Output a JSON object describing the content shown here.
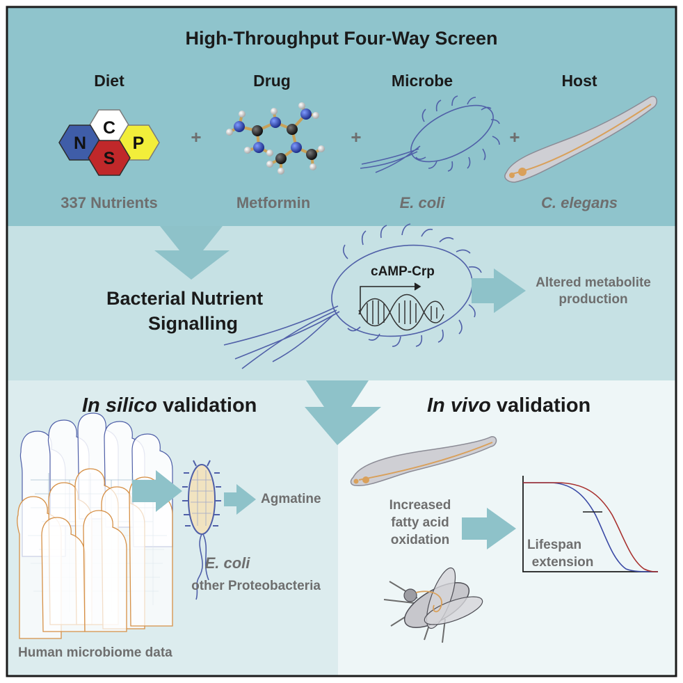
{
  "top_panel": {
    "title": "High-Throughput Four-Way Screen",
    "columns": [
      {
        "header": "Diet",
        "caption": "337 Nutrients"
      },
      {
        "header": "Drug",
        "caption": "Metformin"
      },
      {
        "header": "Microbe",
        "caption": "E. coli"
      },
      {
        "header": "Host",
        "caption": "C. elegans"
      }
    ],
    "plus_sign": "+",
    "hexagon_letters": [
      "N",
      "C",
      "S",
      "P"
    ],
    "hexagon_colors": {
      "N": "#3f5da8",
      "C": "#ffffff",
      "S": "#c0282a",
      "P": "#f2ee3a"
    }
  },
  "middle_panel": {
    "title_line1": "Bacterial Nutrient",
    "title_line2": "Signalling",
    "gene_label": "cAMP-Crp",
    "output_line1": "Altered metabolite",
    "output_line2": "production"
  },
  "bottom_left": {
    "title_italic": "In silico",
    "title_rest": " validation",
    "agmatine": "Agmatine",
    "ecoli": "E. coli",
    "other": "other Proteobacteria",
    "data_label": "Human microbiome data"
  },
  "bottom_right": {
    "title_italic": "In vivo",
    "title_rest": " validation",
    "fatty_line1": "Increased",
    "fatty_line2": "fatty acid",
    "fatty_line3": "oxidation",
    "lifespan_line1": "Lifespan",
    "lifespan_line2": "extension"
  },
  "colors": {
    "top_bg": "#8fc4cc",
    "middle_bg": "#c6e1e4",
    "bottom_left_bg": "#dcecee",
    "bottom_right_bg": "#eef6f7",
    "arrow": "#8ec2c9",
    "bacterium_line": "#5060a8",
    "worm_line": "#d9a05a",
    "curve_blue": "#3a49a5",
    "curve_red": "#a8312f"
  }
}
